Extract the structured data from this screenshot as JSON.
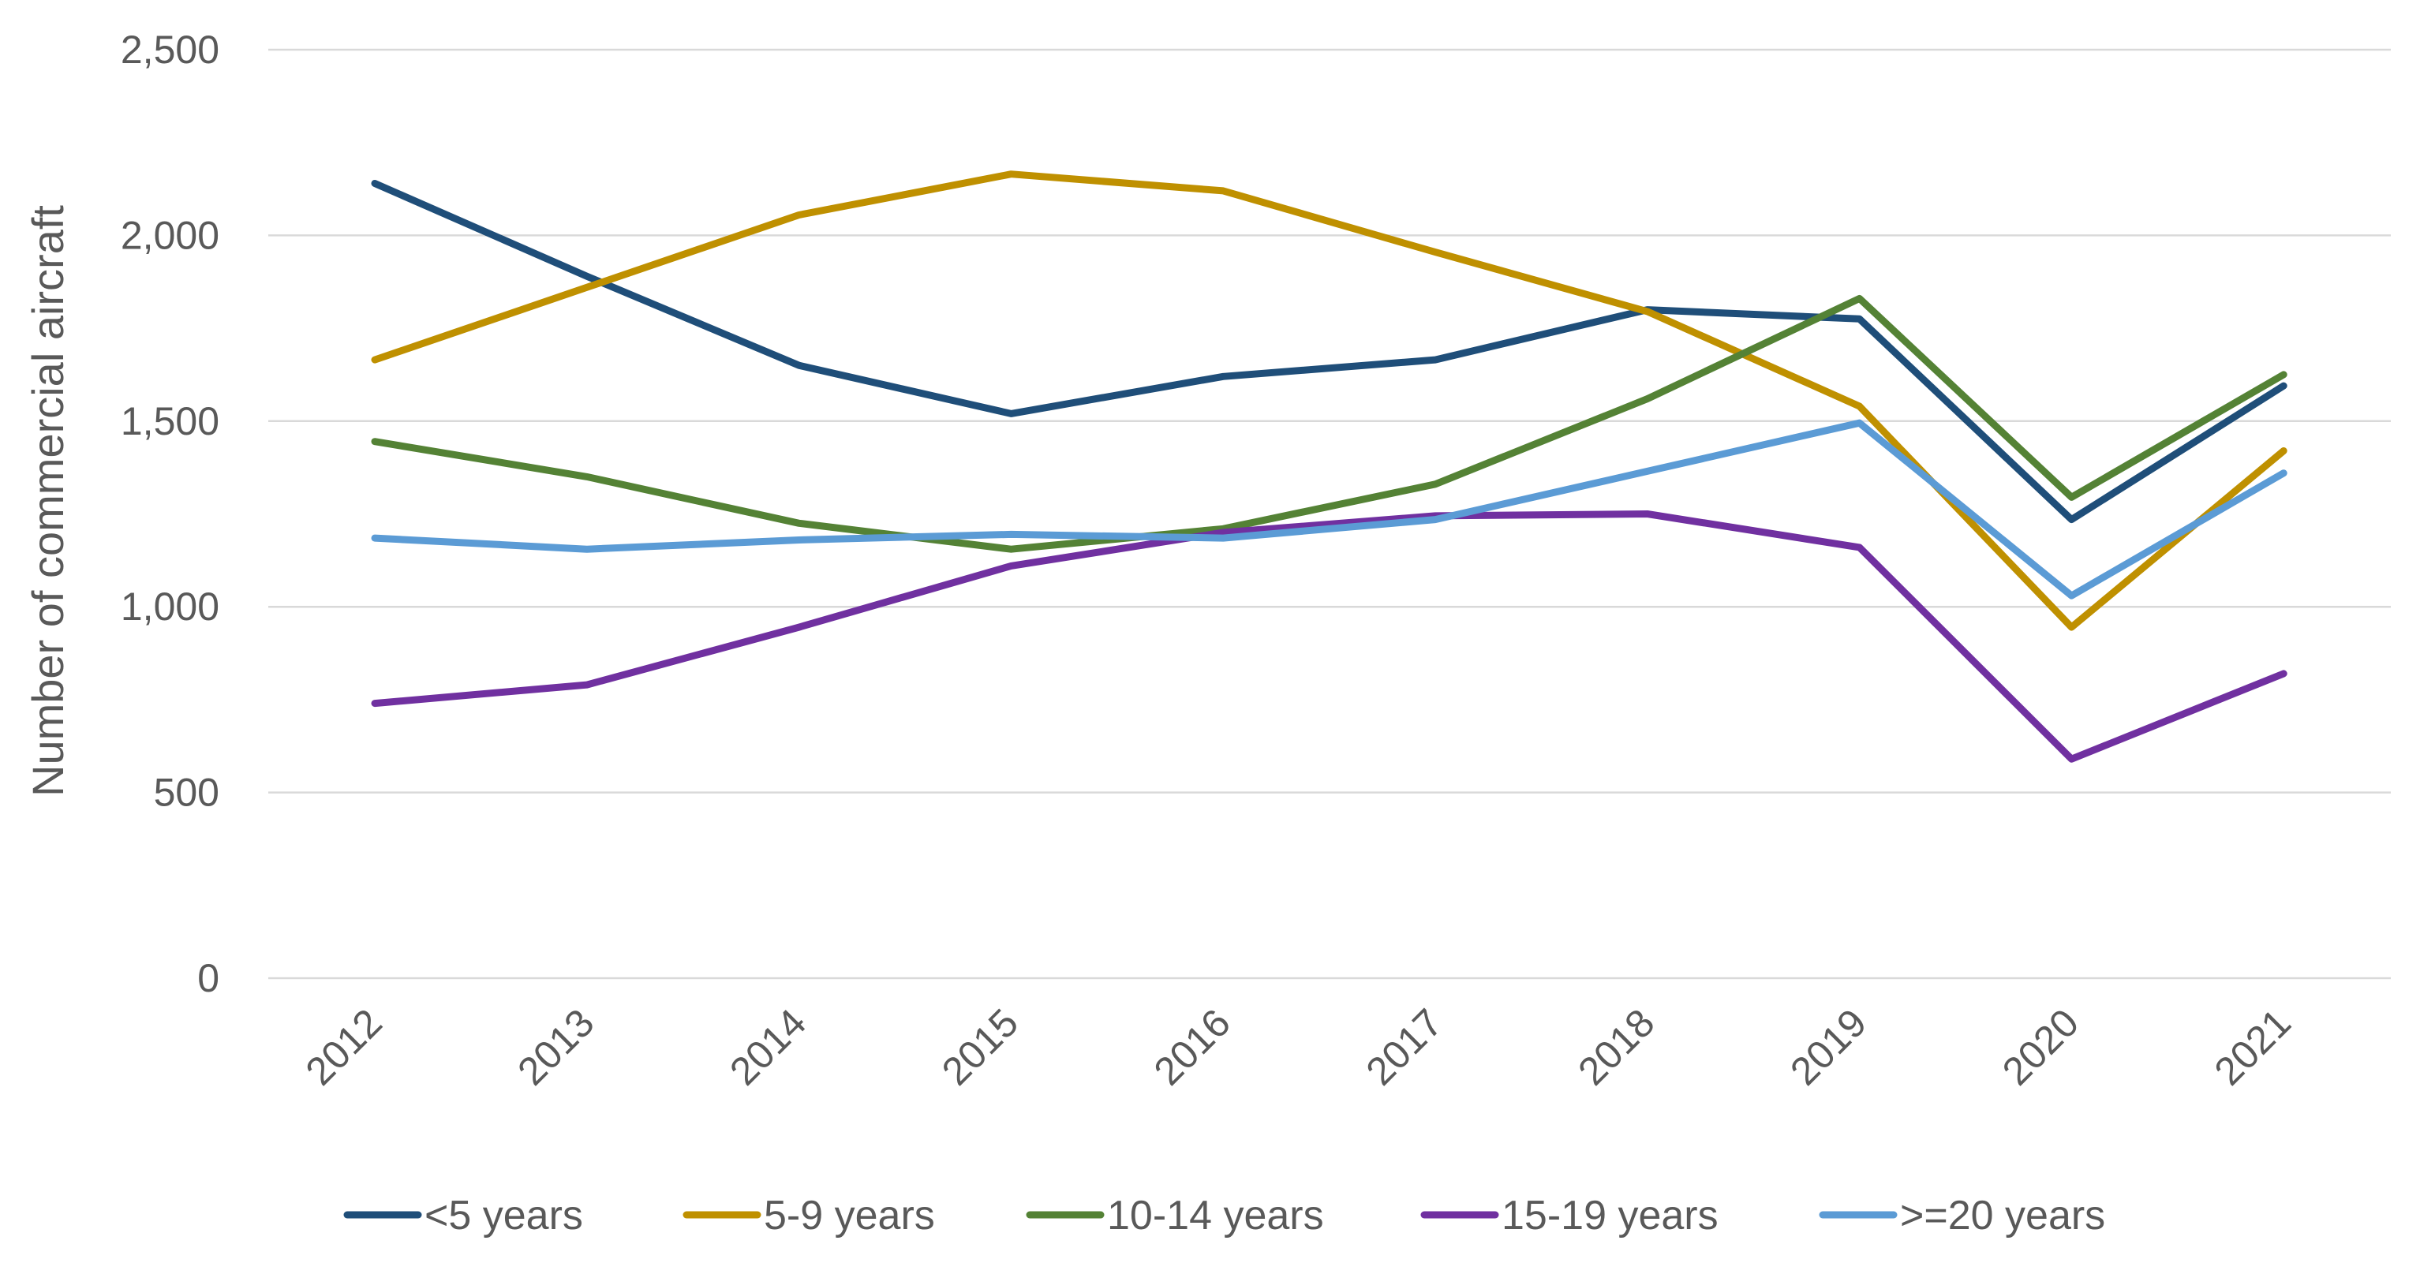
{
  "chart_data": {
    "type": "line",
    "title": "",
    "xlabel": "",
    "ylabel": "Number of commercial aircraft",
    "categories": [
      "2012",
      "2013",
      "2014",
      "2015",
      "2016",
      "2017",
      "2018",
      "2019",
      "2020",
      "2021"
    ],
    "ylim": [
      0,
      2500
    ],
    "yticks": [
      0,
      500,
      1000,
      1500,
      2000,
      2500
    ],
    "ytick_labels": [
      "0",
      "500",
      "1,000",
      "1,500",
      "2,000",
      "2,500"
    ],
    "grid": "horizontal",
    "legend_position": "bottom",
    "series": [
      {
        "name": "<5 years",
        "color": "#1f4e79",
        "values": [
          2140,
          1890,
          1650,
          1520,
          1620,
          1665,
          1800,
          1775,
          1235,
          1595
        ]
      },
      {
        "name": "5-9 years",
        "color": "#bf9000",
        "values": [
          1665,
          1860,
          2055,
          2165,
          2120,
          1955,
          1795,
          1540,
          945,
          1420
        ]
      },
      {
        "name": "10-14 years",
        "color": "#548235",
        "values": [
          1445,
          1350,
          1225,
          1155,
          1210,
          1330,
          1560,
          1830,
          1295,
          1625
        ]
      },
      {
        "name": "15-19 years",
        "color": "#7030a0",
        "values": [
          740,
          790,
          945,
          1110,
          1200,
          1245,
          1250,
          1160,
          590,
          820
        ]
      },
      {
        "name": ">=20 years",
        "color": "#5b9bd5",
        "values": [
          1185,
          1155,
          1180,
          1195,
          1185,
          1235,
          1365,
          1495,
          1030,
          1360
        ]
      }
    ]
  }
}
